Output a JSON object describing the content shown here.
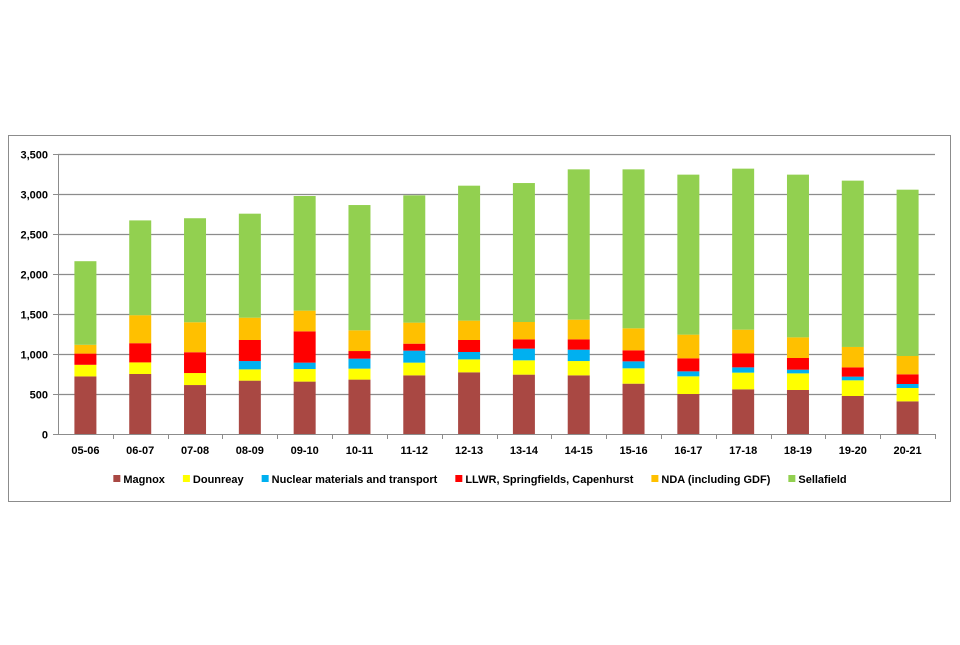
{
  "chart_data": {
    "type": "bar",
    "stacked": true,
    "title": "",
    "xlabel": "",
    "ylabel": "",
    "ylim": [
      0,
      3500
    ],
    "yticks": [
      0,
      500,
      1000,
      1500,
      2000,
      2500,
      3000,
      3500
    ],
    "ytick_labels": [
      "0",
      "500",
      "1,000",
      "1,500",
      "2,000",
      "2,500",
      "3,000",
      "3,500"
    ],
    "grid": true,
    "legend_position": "bottom",
    "categories": [
      "05-06",
      "06-07",
      "07-08",
      "08-09",
      "09-10",
      "10-11",
      "11-12",
      "12-13",
      "13-14",
      "14-15",
      "15-16",
      "16-17",
      "17-18",
      "18-19",
      "19-20",
      "20-21"
    ],
    "series": [
      {
        "name": "Magnox",
        "color": "#A94843",
        "values": [
          720,
          750,
          612,
          667,
          655,
          680,
          733,
          771,
          742,
          733,
          629,
          500,
          558,
          550,
          475,
          408
        ]
      },
      {
        "name": "Dounreay",
        "color": "#FFFF00",
        "values": [
          145,
          145,
          150,
          141,
          157,
          137,
          159,
          162,
          179,
          179,
          192,
          221,
          209,
          208,
          196,
          167
        ]
      },
      {
        "name": "Nuclear materials and transport",
        "color": "#00B0F0",
        "values": [
          0,
          0,
          0,
          104,
          80,
          125,
          150,
          92,
          146,
          142,
          87,
          62,
          66,
          46,
          46,
          50
        ]
      },
      {
        "name": "LLWR, Springfields, Capenhurst",
        "color": "#FF0000",
        "values": [
          140,
          240,
          260,
          263,
          391,
          95,
          87,
          150,
          116,
          129,
          138,
          163,
          175,
          146,
          116,
          121
        ]
      },
      {
        "name": "NDA (including GDF)",
        "color": "#FFC000",
        "values": [
          110,
          350,
          375,
          279,
          259,
          259,
          263,
          242,
          217,
          246,
          275,
          296,
          296,
          258,
          255,
          229
        ]
      },
      {
        "name": "Sellafield",
        "color": "#92D050",
        "values": [
          1045,
          1185,
          1300,
          1300,
          1433,
          1566,
          1591,
          1687,
          1737,
          1879,
          1987,
          2000,
          2013,
          2034,
          2079,
          2079
        ]
      }
    ]
  }
}
